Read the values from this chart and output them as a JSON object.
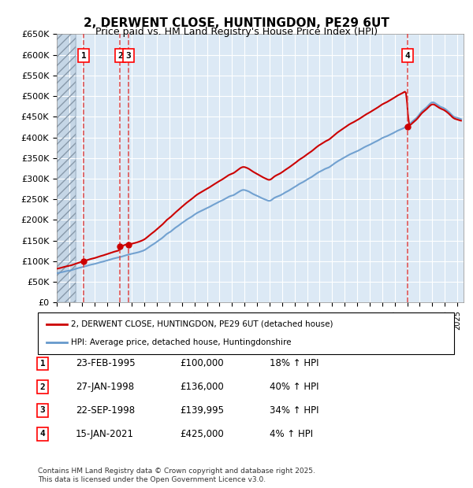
{
  "title": "2, DERWENT CLOSE, HUNTINGDON, PE29 6UT",
  "subtitle": "Price paid vs. HM Land Registry's House Price Index (HPI)",
  "ylabel_ticks": [
    "£0",
    "£50K",
    "£100K",
    "£150K",
    "£200K",
    "£250K",
    "£300K",
    "£350K",
    "£400K",
    "£450K",
    "£500K",
    "£550K",
    "£600K",
    "£650K"
  ],
  "ytick_values": [
    0,
    50000,
    100000,
    150000,
    200000,
    250000,
    300000,
    350000,
    400000,
    450000,
    500000,
    550000,
    600000,
    650000
  ],
  "xmin": 1993.0,
  "xmax": 2025.5,
  "ymin": 0,
  "ymax": 650000,
  "sale_dates": [
    1995.14,
    1998.07,
    1998.72,
    2021.04
  ],
  "sale_prices": [
    100000,
    136000,
    139995,
    425000
  ],
  "sale_labels": [
    "1",
    "2",
    "3",
    "4"
  ],
  "legend_line_label": "2, DERWENT CLOSE, HUNTINGDON, PE29 6UT (detached house)",
  "legend_hpi_label": "HPI: Average price, detached house, Huntingdonshire",
  "table_data": [
    [
      "1",
      "23-FEB-1995",
      "£100,000",
      "18% ↑ HPI"
    ],
    [
      "2",
      "27-JAN-1998",
      "£136,000",
      "40% ↑ HPI"
    ],
    [
      "3",
      "22-SEP-1998",
      "£139,995",
      "34% ↑ HPI"
    ],
    [
      "4",
      "15-JAN-2021",
      "£425,000",
      "4% ↑ HPI"
    ]
  ],
  "footer": "Contains HM Land Registry data © Crown copyright and database right 2025.\nThis data is licensed under the Open Government Licence v3.0.",
  "bg_color": "#dce9f5",
  "hatch_color": "#b0c4d8",
  "grid_color": "#aaaacc",
  "line_color_red": "#cc0000",
  "line_color_blue": "#6699cc",
  "dashed_line_color": "#dd4444"
}
